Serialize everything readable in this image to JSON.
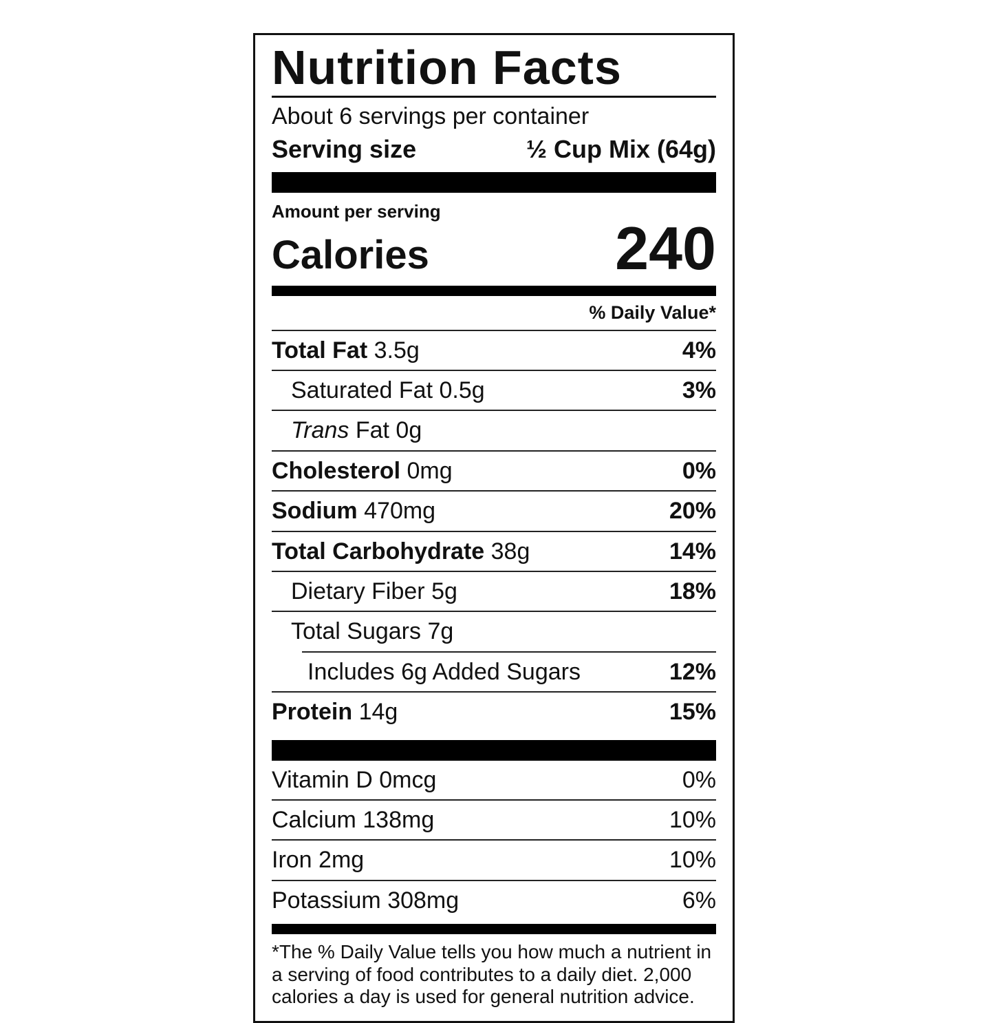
{
  "colors": {
    "text": "#111111",
    "bar": "#000000",
    "background": "#ffffff"
  },
  "label": {
    "title": "Nutrition Facts",
    "servings_per_container": "About 6 servings per container",
    "serving_size_label": "Serving size",
    "serving_size_value": "½ Cup Mix (64g)",
    "amount_per_serving": "Amount per serving",
    "calories_label": "Calories",
    "calories_value": "240",
    "daily_value_header": "% Daily Value*",
    "rows": [
      {
        "name": "Total Fat",
        "amount": "3.5g",
        "dv": "4%"
      },
      {
        "name": "Saturated Fat",
        "amount": "0.5g",
        "dv": "3%"
      },
      {
        "name": "Trans",
        "amount": "Fat 0g",
        "dv": ""
      },
      {
        "name": "Cholesterol",
        "amount": "0mg",
        "dv": "0%"
      },
      {
        "name": "Sodium",
        "amount": "470mg",
        "dv": "20%"
      },
      {
        "name": "Total Carbohydrate",
        "amount": "38g",
        "dv": "14%"
      },
      {
        "name": "Dietary Fiber",
        "amount": "5g",
        "dv": "18%"
      },
      {
        "name": "Total Sugars",
        "amount": "7g",
        "dv": ""
      },
      {
        "name": "Includes 6g Added Sugars",
        "amount": "",
        "dv": "12%"
      },
      {
        "name": "Protein",
        "amount": "14g",
        "dv": "15%"
      }
    ],
    "micronutrients": [
      {
        "name": "Vitamin D",
        "amount": "0mcg",
        "dv": "0%"
      },
      {
        "name": "Calcium",
        "amount": "138mg",
        "dv": "10%"
      },
      {
        "name": "Iron",
        "amount": "2mg",
        "dv": "10%"
      },
      {
        "name": "Potassium",
        "amount": "308mg",
        "dv": "6%"
      }
    ],
    "footnote": "*The % Daily Value tells you how much a nutrient in a serving of food contributes to a daily diet. 2,000 calories a day is used for general nutrition advice."
  }
}
